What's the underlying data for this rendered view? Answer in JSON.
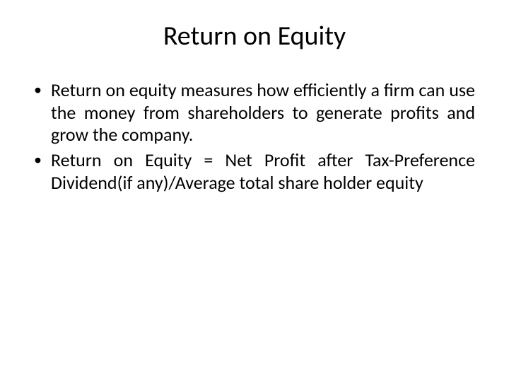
{
  "slide": {
    "title": "Return on Equity",
    "title_fontsize": 38,
    "title_color": "#000000",
    "body_fontsize": 26,
    "body_color": "#000000",
    "background_color": "#ffffff",
    "bullets": [
      {
        "marker": "•",
        "text": "Return on equity measures how efficiently a firm can use the money from shareholders to generate profits and grow the company."
      },
      {
        "marker": "•",
        "text": "Return on Equity = Net Profit after Tax-Preference Dividend(if any)/Average total share holder equity"
      }
    ]
  }
}
